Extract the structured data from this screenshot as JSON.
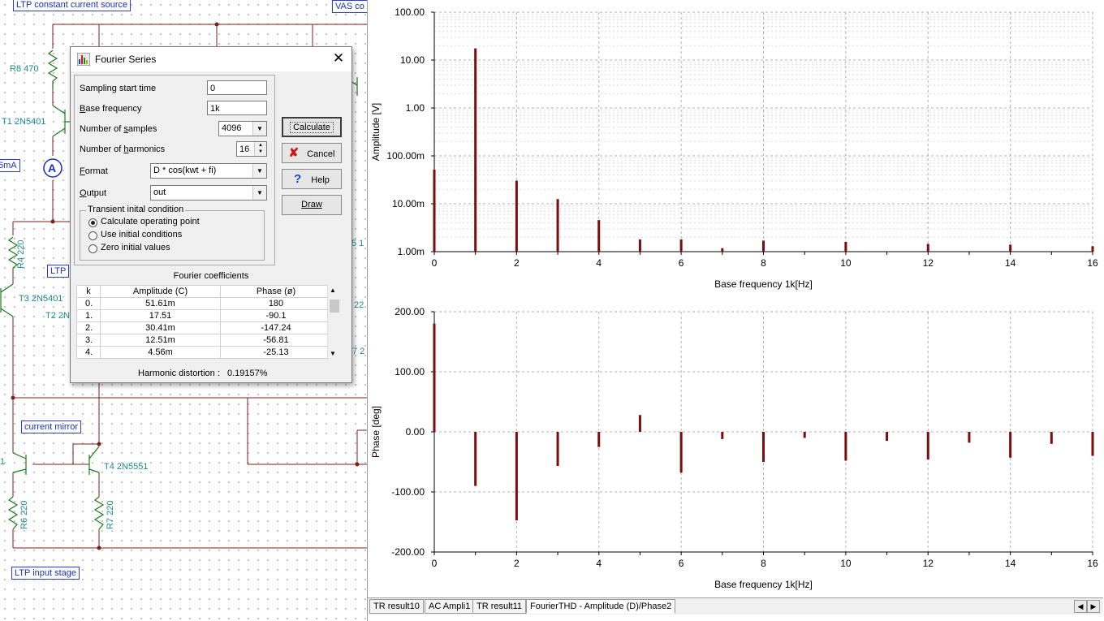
{
  "schematic": {
    "labels": {
      "ltp_ccs": "LTP constant current source",
      "vas": "VAS co",
      "ltp": "LTP",
      "current_mirror": "current mirror",
      "ltp_input_stage": "LTP input stage"
    },
    "components": {
      "r8": "R8 470",
      "t1": "T1 2N5401",
      "ammeter_text": "6mA",
      "ammeter_symbol": "A",
      "r4": "R4 220",
      "t3": "T3 2N5401",
      "t2": "T2 2N",
      "t4": "T4 2N5551",
      "r6": "R6 220",
      "r7": "R7 220",
      "frag_5": "5 1",
      "frag_22": "22",
      "frag_7": "7 2",
      "frag_1": "1"
    }
  },
  "dialog": {
    "title": "Fourier Series",
    "close": "✕",
    "fields": {
      "sampling_start_label": "Sampling start time",
      "sampling_start_value": "0",
      "base_freq_label_pre": "",
      "base_freq_label_u": "B",
      "base_freq_label_post": "ase frequency",
      "base_freq_value": "1k",
      "num_samples_label_pre": "Number of ",
      "num_samples_label_u": "s",
      "num_samples_label_post": "amples",
      "num_samples_value": "4096",
      "num_harmonics_label_pre": "Number of ",
      "num_harmonics_label_u": "h",
      "num_harmonics_label_post": "armonics",
      "num_harmonics_value": "16",
      "format_label_u": "F",
      "format_label_post": "ormat",
      "format_value": "D * cos(kwt + fi)",
      "output_label_u": "O",
      "output_label_post": "utput",
      "output_value": "out"
    },
    "transient": {
      "title": "Transient inital condition",
      "options": [
        "Calculate operating point",
        "Use initial conditions",
        "Zero initial values"
      ],
      "selected": 0
    },
    "buttons": {
      "calculate": "Calculate",
      "cancel": "Cancel",
      "help": "Help",
      "draw": "Draw"
    },
    "coefficients": {
      "title": "Fourier coefficients",
      "headers": [
        "k",
        "Amplitude (C)",
        "Phase (ø)"
      ],
      "rows": [
        [
          "0.",
          "51.61m",
          "180"
        ],
        [
          "1.",
          "17.51",
          "-90.1"
        ],
        [
          "2.",
          "30.41m",
          "-147.24"
        ],
        [
          "3.",
          "12.51m",
          "-56.81"
        ],
        [
          "4.",
          "4.56m",
          "-25.13"
        ]
      ]
    },
    "distortion_label": "Harmonic distortion :",
    "distortion_value": "0.19157%"
  },
  "tabs": [
    "TR result10",
    "AC Ampli1",
    "TR result11",
    "FourierTHD - Amplitude (D)/Phase2"
  ],
  "active_tab": 3,
  "chart_data": [
    {
      "type": "bar",
      "xlabel": "Base frequency 1k[Hz]",
      "ylabel": "Amplitude [V]",
      "scale": "log",
      "ylim": [
        0.001,
        100
      ],
      "yticks": [
        "100.00",
        "10.00",
        "1.00",
        "100.00m",
        "10.00m",
        "1.00m"
      ],
      "xticks": [
        "0",
        "2",
        "4",
        "6",
        "8",
        "10",
        "12",
        "14",
        "16"
      ],
      "xlim": [
        0,
        16
      ],
      "x": [
        0,
        1,
        2,
        3,
        4,
        5,
        6,
        7,
        8,
        9,
        10,
        11,
        12,
        13,
        14,
        15,
        16
      ],
      "values": [
        0.05161,
        17.51,
        0.03041,
        0.01251,
        0.00456,
        0.0018,
        0.0018,
        0.00118,
        0.0017,
        0.001,
        0.0016,
        0.001,
        0.00145,
        0.001,
        0.0014,
        0.001,
        0.0013
      ],
      "color": "#7b0d0d",
      "grid": true
    },
    {
      "type": "bar",
      "xlabel": "Base frequency 1k[Hz]",
      "ylabel": "Phase [deg]",
      "ylim": [
        -200,
        200
      ],
      "yticks": [
        "200.00",
        "100.00",
        "0.00",
        "-100.00",
        "-200.00"
      ],
      "xticks": [
        "0",
        "2",
        "4",
        "6",
        "8",
        "10",
        "12",
        "14",
        "16"
      ],
      "xlim": [
        0,
        16
      ],
      "x": [
        0,
        1,
        2,
        3,
        4,
        5,
        6,
        7,
        8,
        9,
        10,
        11,
        12,
        13,
        14,
        15,
        16
      ],
      "values": [
        180,
        -90.1,
        -147.24,
        -56.81,
        -25.13,
        28,
        -68,
        -12,
        -50,
        -10,
        -48,
        -15,
        -46,
        -18,
        -43,
        -20,
        -40
      ],
      "color": "#7b0d0d",
      "grid": true
    }
  ]
}
